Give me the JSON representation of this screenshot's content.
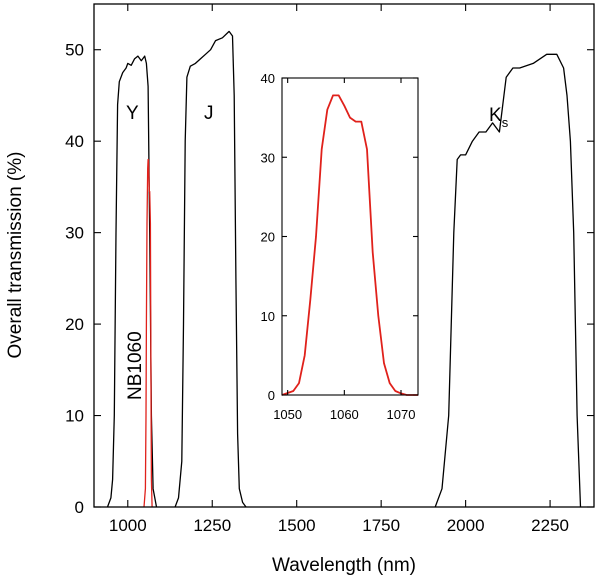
{
  "chart_data": [
    {
      "type": "line",
      "title": "",
      "xlabel": "Wavelength (nm)",
      "ylabel": "Overall transmission (%)",
      "xlim": [
        900,
        2380
      ],
      "ylim": [
        0,
        55
      ],
      "xticks": [
        1000,
        1250,
        1500,
        1750,
        2000,
        2250
      ],
      "yticks": [
        0,
        10,
        20,
        30,
        40,
        50
      ],
      "xtick_labels": [
        "1000",
        "1250",
        "1500",
        "1750",
        "2000",
        "2250"
      ],
      "ytick_labels": [
        "0",
        "10",
        "20",
        "30",
        "40",
        "50"
      ],
      "series": [
        {
          "name": "Y",
          "label": "Y",
          "color": "#000000",
          "x": [
            940,
            950,
            955,
            960,
            965,
            970,
            975,
            985,
            995,
            1000,
            1010,
            1020,
            1030,
            1040,
            1050,
            1055,
            1060,
            1065,
            1070,
            1075,
            1085
          ],
          "y": [
            0,
            1,
            3,
            10,
            30,
            44,
            46.5,
            47.5,
            48,
            48.5,
            48.3,
            49,
            49.3,
            48.8,
            49.3,
            48.5,
            46,
            30,
            10,
            2,
            0
          ]
        },
        {
          "name": "J",
          "label": "J",
          "color": "#000000",
          "x": [
            1140,
            1150,
            1160,
            1165,
            1170,
            1175,
            1185,
            1200,
            1215,
            1230,
            1245,
            1260,
            1280,
            1300,
            1310,
            1315,
            1320,
            1325,
            1330,
            1340,
            1350
          ],
          "y": [
            0,
            1,
            5,
            20,
            40,
            47,
            48.2,
            48.5,
            49,
            49.5,
            50,
            51,
            51.3,
            52,
            51.5,
            45,
            25,
            8,
            2,
            0.5,
            0
          ]
        },
        {
          "name": "Ks",
          "label": "K",
          "label_sub": "s",
          "color": "#000000",
          "x": [
            1910,
            1930,
            1950,
            1965,
            1975,
            1985,
            2000,
            2020,
            2040,
            2060,
            2080,
            2100,
            2120,
            2140,
            2160,
            2200,
            2240,
            2270,
            2290,
            2300,
            2310,
            2320,
            2330,
            2340
          ],
          "y": [
            0,
            2,
            10,
            30,
            38,
            38.5,
            38.5,
            40,
            41,
            41,
            42,
            41,
            47,
            48,
            48,
            48.5,
            49.5,
            49.5,
            48,
            45,
            40,
            30,
            10,
            0
          ]
        },
        {
          "name": "NB1060",
          "label": "NB1060",
          "color": "#e0211b",
          "x": [
            1048,
            1052,
            1054,
            1055,
            1057,
            1059,
            1060,
            1061,
            1062,
            1063,
            1064,
            1065,
            1067,
            1069,
            1070,
            1072
          ],
          "y": [
            0,
            2,
            10,
            20,
            31,
            37,
            38,
            38,
            37,
            35,
            34.5,
            34.5,
            31,
            10,
            3,
            0
          ]
        }
      ]
    },
    {
      "type": "line",
      "title": "",
      "xlabel": "",
      "ylabel": "",
      "xlim": [
        1049,
        1073
      ],
      "ylim": [
        0,
        40
      ],
      "xticks": [
        1050,
        1060,
        1070
      ],
      "yticks": [
        0,
        10,
        20,
        30,
        40
      ],
      "xtick_labels": [
        "1050",
        "1060",
        "1070"
      ],
      "ytick_labels": [
        "0",
        "10",
        "20",
        "30",
        "40"
      ],
      "series": [
        {
          "name": "NB1060",
          "color": "#e0211b",
          "x": [
            1049,
            1051,
            1052,
            1053,
            1054,
            1055,
            1056,
            1057,
            1058,
            1059,
            1060,
            1061,
            1062,
            1063,
            1064,
            1065,
            1066,
            1067,
            1068,
            1069,
            1070,
            1071,
            1072,
            1073
          ],
          "y": [
            0,
            0.5,
            1.5,
            5,
            12,
            20,
            31,
            36,
            37.8,
            37.8,
            36.5,
            35,
            34.5,
            34.5,
            31,
            18,
            10,
            4,
            1.5,
            0.5,
            0.2,
            0,
            0,
            0
          ]
        }
      ]
    }
  ]
}
